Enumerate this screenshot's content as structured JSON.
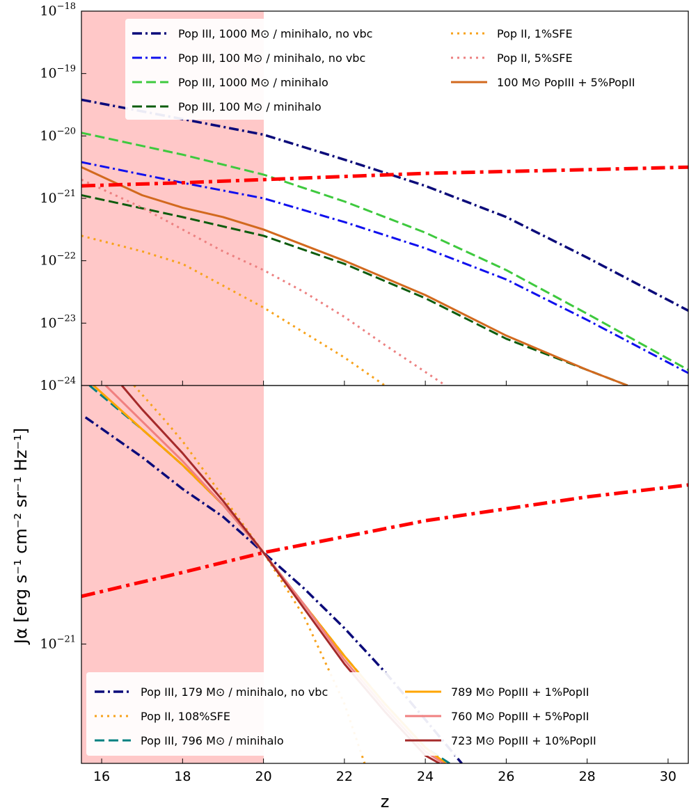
{
  "figure": {
    "xlabel": "z",
    "ylabel": "Jα [erg s⁻¹ cm⁻² sr⁻¹ Hz⁻¹]",
    "shaded_region": {
      "x_from": 15.5,
      "x_to": 20,
      "color": "#ffc8c8"
    }
  },
  "chart_data": [
    {
      "type": "line",
      "panel": "top",
      "xlim": [
        15.5,
        30.5
      ],
      "ylim_log10": [
        -24,
        -18
      ],
      "x_ticks": [
        16,
        18,
        20,
        22,
        24,
        26,
        28,
        30
      ],
      "y_ticks": [
        {
          "base": "10",
          "exp": "−18",
          "v": -18
        },
        {
          "base": "10",
          "exp": "−19",
          "v": -19
        },
        {
          "base": "10",
          "exp": "−20",
          "v": -20
        },
        {
          "base": "10",
          "exp": "−21",
          "v": -21
        },
        {
          "base": "10",
          "exp": "−22",
          "v": -22
        },
        {
          "base": "10",
          "exp": "−23",
          "v": -23
        },
        {
          "base": "10",
          "exp": "−24",
          "v": -24
        }
      ],
      "legend_position": "top",
      "series": [
        {
          "name": "Pop III, 1000 M⊙ / minihalo, no vbc",
          "color": "#0b0b7a",
          "dash": "dashdot",
          "width": 3.5,
          "x": [
            15.5,
            18,
            20,
            22,
            24,
            26,
            28,
            30.5
          ],
          "log10_y": [
            -19.42,
            -19.73,
            -19.98,
            -20.38,
            -20.8,
            -21.3,
            -21.95,
            -22.8
          ]
        },
        {
          "name": "Pop III, 100 M⊙ / minihalo, no vbc",
          "color": "#1010ee",
          "dash": "dashdot",
          "width": 3,
          "x": [
            15.5,
            18,
            20,
            22,
            24,
            26,
            28,
            30.5
          ],
          "log10_y": [
            -20.42,
            -20.75,
            -21.0,
            -21.38,
            -21.8,
            -22.3,
            -22.95,
            -23.8
          ]
        },
        {
          "name": "Pop III, 1000 M⊙ / minihalo",
          "color": "#3ec93e",
          "dash": "dashed",
          "width": 3,
          "x": [
            15.5,
            18,
            20,
            22,
            24,
            26,
            28,
            30.5
          ],
          "log10_y": [
            -19.95,
            -20.3,
            -20.62,
            -21.05,
            -21.55,
            -22.15,
            -22.85,
            -23.75
          ]
        },
        {
          "name": "Pop III, 100 M⊙ / minihalo",
          "color": "#0d5c0d",
          "dash": "dashed",
          "width": 3,
          "x": [
            15.5,
            18,
            20,
            22,
            24,
            26,
            28,
            29
          ],
          "log10_y": [
            -20.95,
            -21.3,
            -21.6,
            -22.05,
            -22.6,
            -23.25,
            -23.75,
            -24.0
          ]
        },
        {
          "name": "Pop II, 1%SFE",
          "color": "#f7a21b",
          "dash": "dotted",
          "width": 3,
          "x": [
            15.5,
            17,
            18,
            19,
            20,
            21,
            22,
            23
          ],
          "log10_y": [
            -21.6,
            -21.85,
            -22.05,
            -22.4,
            -22.75,
            -23.15,
            -23.55,
            -24.0
          ]
        },
        {
          "name": "Pop II, 5%SFE",
          "color": "#ec8080",
          "dash": "dotted",
          "width": 3,
          "x": [
            15.5,
            17,
            18,
            19,
            20,
            21,
            22,
            23,
            24.5
          ],
          "log10_y": [
            -20.7,
            -21.15,
            -21.5,
            -21.85,
            -22.15,
            -22.5,
            -22.9,
            -23.35,
            -24.0
          ]
        },
        {
          "name": "100 M⊙ PopIII + 5%PopII",
          "color": "#d2691e",
          "dash": "solid",
          "width": 3,
          "x": [
            15.5,
            17,
            18,
            19,
            20,
            22,
            24,
            26,
            28,
            29
          ],
          "log10_y": [
            -20.5,
            -20.95,
            -21.15,
            -21.3,
            -21.5,
            -22.0,
            -22.55,
            -23.2,
            -23.75,
            -24.0
          ]
        },
        {
          "name": "",
          "color": "#ff0000",
          "dash": "dashdot-thick",
          "width": 5,
          "x": [
            15.5,
            18,
            20,
            22,
            24,
            26,
            28,
            30.5
          ],
          "log10_y": [
            -20.8,
            -20.75,
            -20.7,
            -20.65,
            -20.6,
            -20.57,
            -20.54,
            -20.5
          ]
        }
      ]
    },
    {
      "type": "line",
      "panel": "bottom",
      "xlim": [
        15.5,
        30.5
      ],
      "ylim_log10": [
        -21.3,
        -20.35
      ],
      "x_ticks": [
        16,
        18,
        20,
        22,
        24,
        26,
        28,
        30
      ],
      "y_ticks": [
        {
          "base": "10",
          "exp": "−21",
          "v": -21
        }
      ],
      "legend_position": "bottom",
      "series": [
        {
          "name": "Pop III, 179 M⊙ / minihalo, no vbc",
          "color": "#0b0b7a",
          "dash": "dashdot",
          "width": 3.5,
          "x": [
            15.6,
            17,
            18,
            19,
            20,
            21,
            22,
            23,
            24,
            24.9
          ],
          "log10_y": [
            -20.43,
            -20.53,
            -20.61,
            -20.68,
            -20.77,
            -20.86,
            -20.96,
            -21.07,
            -21.19,
            -21.3
          ]
        },
        {
          "name": "Pop II, 108%SFE",
          "color": "#f7a21b",
          "dash": "dotted",
          "width": 3,
          "x": [
            16.8,
            17.5,
            18,
            18.5,
            19,
            20,
            21,
            22,
            22.5
          ],
          "log10_y": [
            -20.35,
            -20.43,
            -20.49,
            -20.56,
            -20.63,
            -20.77,
            -20.93,
            -21.15,
            -21.3
          ]
        },
        {
          "name": "Pop III, 796 M⊙ / minihalo",
          "color": "#008080",
          "dash": "dashed",
          "width": 3,
          "x": [
            15.7,
            17,
            18,
            19,
            20,
            21,
            22,
            23,
            24,
            24.6
          ],
          "log10_y": [
            -20.35,
            -20.46,
            -20.55,
            -20.65,
            -20.77,
            -20.9,
            -21.03,
            -21.15,
            -21.26,
            -21.3
          ]
        },
        {
          "name": "789 M⊙ PopIII + 1%PopII",
          "color": "#ffa500",
          "dash": "solid",
          "width": 3,
          "x": [
            15.8,
            17,
            18,
            19,
            20,
            21,
            22,
            23,
            24,
            24.5
          ],
          "log10_y": [
            -20.35,
            -20.46,
            -20.55,
            -20.65,
            -20.77,
            -20.9,
            -21.03,
            -21.15,
            -21.26,
            -21.3
          ]
        },
        {
          "name": "760 M⊙ PopIII + 5%PopII",
          "color": "#f08080",
          "dash": "solid",
          "width": 3,
          "x": [
            16.1,
            17,
            18,
            19,
            20,
            21,
            22,
            23,
            24,
            24.45
          ],
          "log10_y": [
            -20.35,
            -20.44,
            -20.54,
            -20.65,
            -20.77,
            -20.9,
            -21.04,
            -21.16,
            -21.27,
            -21.3
          ]
        },
        {
          "name": "723 M⊙ PopIII + 10%PopII",
          "color": "#a52a2a",
          "dash": "solid",
          "width": 3,
          "x": [
            16.5,
            17,
            18,
            19,
            20,
            21,
            22,
            23,
            24,
            24.35
          ],
          "log10_y": [
            -20.35,
            -20.41,
            -20.52,
            -20.64,
            -20.77,
            -20.91,
            -21.05,
            -21.17,
            -21.28,
            -21.3
          ]
        },
        {
          "name": "",
          "color": "#ff0000",
          "dash": "dashdot-thick",
          "width": 5,
          "x": [
            15.5,
            18,
            20,
            22,
            24,
            26,
            28,
            30.5
          ],
          "log10_y": [
            -20.88,
            -20.82,
            -20.77,
            -20.73,
            -20.69,
            -20.66,
            -20.63,
            -20.6
          ]
        }
      ]
    }
  ]
}
